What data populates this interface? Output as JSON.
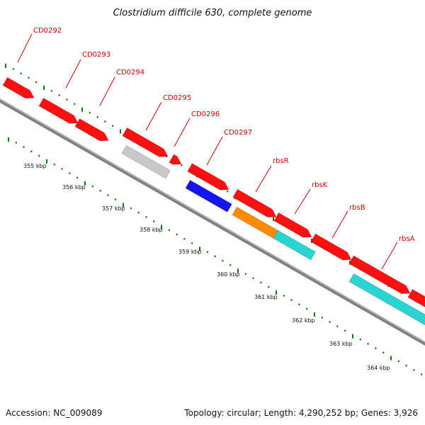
{
  "title": "Clostridium difficile 630, complete genome",
  "accession": "Accession: NC_009089",
  "topology": "Topology: circular; Length: 4,290,252 bp; Genes: 3,926",
  "colors": {
    "red": "#ff1010",
    "gray": "#c8c8c8",
    "blue": "#1414ee",
    "orange": "#ff8c00",
    "cyan": "#29d4d4",
    "backbone": "#808080",
    "tick": "#117711",
    "label": "#cc0000"
  },
  "gene_labels": [
    "CD0292",
    "CD0293",
    "CD0294",
    "CD0295",
    "CD0296",
    "CD0297",
    "rbsR",
    "rbsK",
    "rbsB",
    "rbsA"
  ],
  "kbp_labels": [
    "355 kbp",
    "356 kbp",
    "357 kbp",
    "358 kbp",
    "359 kbp",
    "360 kbp",
    "361 kbp",
    "362 kbp",
    "363 kbp",
    "364 kbp"
  ]
}
